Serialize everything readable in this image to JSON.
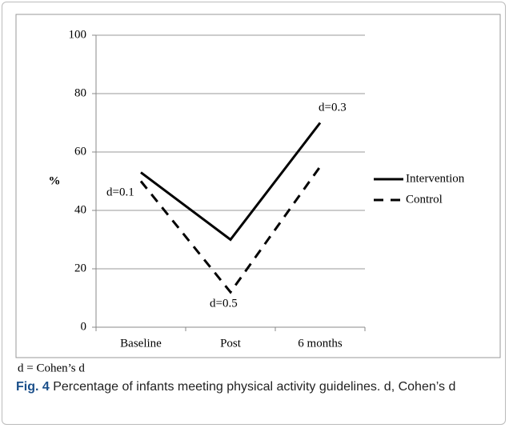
{
  "chart_data": {
    "type": "line",
    "y_label": "%",
    "categories": [
      "Baseline",
      "Post",
      "6 months"
    ],
    "series": [
      {
        "name": "Intervention",
        "color": "#000000",
        "dash": "solid",
        "values": [
          53,
          30,
          70
        ]
      },
      {
        "name": "Control",
        "color": "#000000",
        "dash": "dashed",
        "values": [
          50,
          12,
          55
        ]
      }
    ],
    "ylim": [
      0,
      100
    ],
    "yticks": [
      0,
      20,
      40,
      60,
      80,
      100
    ],
    "grid": true,
    "legend": "right",
    "annotations": [
      "d=0.1",
      "d=0.5",
      "d=0.3"
    ],
    "footnote": "d = Cohen’s d"
  },
  "caption": {
    "label": "Fig. 4",
    "text": "Percentage of infants meeting physical activity guidelines. d, Cohen’s d"
  }
}
